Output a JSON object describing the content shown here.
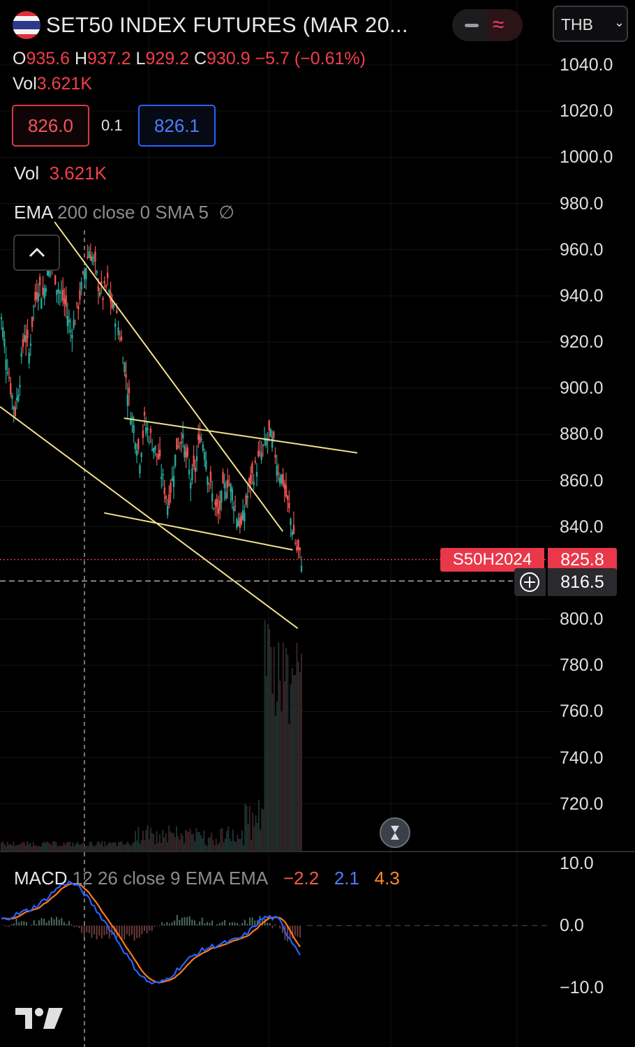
{
  "header": {
    "title": "SET50 INDEX FUTURES (MAR 20...",
    "currency_selector": "THB",
    "open_label": "O",
    "open": "935.6",
    "high_label": "H",
    "high": "937.2",
    "low_label": "L",
    "low": "929.2",
    "close_label": "C",
    "close": "930.9",
    "change": "−5.7 (−0.61%)",
    "volume_label": "Vol",
    "volume": "3.621K"
  },
  "quote": {
    "bid": "826.0",
    "spread": "0.1",
    "ask": "826.1"
  },
  "volume_indicator": {
    "label": "Vol",
    "value": "3.621K"
  },
  "ema_indicator": {
    "name": "EMA",
    "params": "200 close 0 SMA 5",
    "value_icon": "∅"
  },
  "price_tag": {
    "symbol": "S50H2024",
    "price": "825.8"
  },
  "crosshair": {
    "price": "816.5"
  },
  "macd": {
    "name": "MACD",
    "params": "12 26 close 9 EMA EMA",
    "hist": "−2.2",
    "macd": "2.1",
    "signal": "4.3"
  },
  "colors": {
    "up": "#26a69a",
    "down": "#ef5350",
    "trendline": "#f2e28c",
    "macd_line": "#2962ff",
    "signal_line": "#ff7b1a",
    "price_tag": "#e8384a"
  },
  "chart_data": {
    "type": "candlestick",
    "price_axis": {
      "ticks": [
        "1040.0",
        "1020.0",
        "1000.0",
        "980.0",
        "960.0",
        "940.0",
        "920.0",
        "900.0",
        "880.0",
        "860.0",
        "840.0",
        "800.0",
        "780.0",
        "760.0",
        "740.0",
        "720.0"
      ],
      "range": [
        700,
        1050
      ]
    },
    "macd_axis": {
      "ticks": [
        "10.0",
        "0.0",
        "−10.0"
      ],
      "range": [
        -14,
        12
      ]
    },
    "candles_close_path": [
      930,
      915,
      900,
      890,
      905,
      925,
      915,
      935,
      945,
      940,
      950,
      955,
      945,
      940,
      935,
      925,
      930,
      940,
      950,
      960,
      955,
      945,
      940,
      945,
      935,
      930,
      920,
      905,
      890,
      880,
      870,
      885,
      880,
      875,
      870,
      860,
      850,
      860,
      875,
      880,
      870,
      860,
      865,
      880,
      875,
      860,
      850,
      845,
      855,
      860,
      855,
      845,
      840,
      850,
      860,
      865,
      870,
      875,
      880,
      875,
      865,
      860,
      850,
      840,
      830,
      826
    ],
    "trendlines": [
      {
        "from": [
          0.11,
          972
        ],
        "to": [
          0.57,
          838
        ]
      },
      {
        "from": [
          0.25,
          887
        ],
        "to": [
          0.72,
          872
        ]
      },
      {
        "from": [
          0.21,
          846
        ],
        "to": [
          0.59,
          830
        ]
      },
      {
        "from": [
          0.0,
          892
        ],
        "to": [
          0.6,
          796
        ]
      }
    ],
    "current_price": 825.8,
    "crosshair_price": 816.5
  }
}
